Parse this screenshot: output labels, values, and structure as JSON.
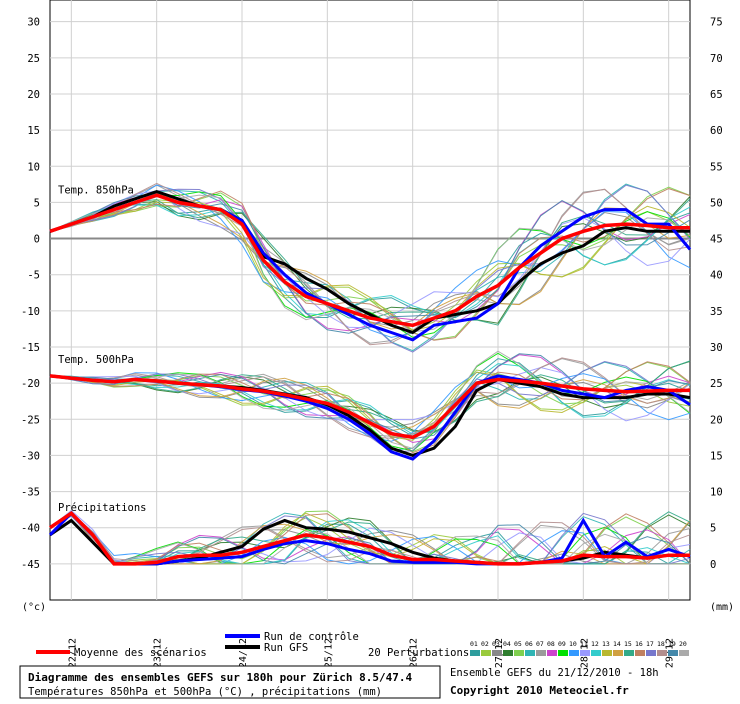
{
  "chart_data": {
    "type": "line",
    "title": "Diagramme des ensembles GEFS sur 180h pour Zürich 8.5/47.4",
    "subtitle": "Températures 850hPa et 500hPa (°C) , précipitations (mm)",
    "run_info": "Ensemble GEFS du 21/12/2010 - 18h",
    "copyright": "Copyright 2010 Meteociel.fr",
    "left_unit": "(°c)",
    "right_unit": "(mm)",
    "left_axis": {
      "ylim": [
        -50,
        33
      ],
      "ticks": [
        30,
        25,
        20,
        15,
        10,
        5,
        0,
        -5,
        -10,
        -15,
        -20,
        -25,
        -30,
        -35,
        -40,
        -45
      ]
    },
    "right_axis": {
      "ticks": [
        75,
        70,
        65,
        60,
        55,
        50,
        45,
        40,
        35,
        30,
        25,
        20,
        15,
        10,
        5,
        0
      ]
    },
    "x_axis": {
      "labels": [
        "22/12",
        "23/12",
        "24/12",
        "25/12",
        "26/12",
        "27/12",
        "28/12",
        "29/12"
      ],
      "hours": [
        6,
        30,
        54,
        78,
        102,
        126,
        150,
        174
      ]
    },
    "grid": true,
    "panels": [
      {
        "label": "Temp. 850hPa",
        "x_hours": [
          0,
          6,
          12,
          18,
          24,
          30,
          36,
          42,
          48,
          54,
          60,
          66,
          72,
          78,
          84,
          90,
          96,
          102,
          108,
          114,
          120,
          126,
          132,
          138,
          144,
          150,
          156,
          162,
          168,
          174,
          180
        ],
        "mean": [
          1,
          2,
          3,
          4,
          5,
          6,
          5,
          4.5,
          4,
          2,
          -3,
          -6,
          -8,
          -9,
          -10,
          -11,
          -11.5,
          -12,
          -11,
          -10,
          -8,
          -6.5,
          -4,
          -2,
          0,
          1,
          1.8,
          2,
          1.8,
          1.5,
          1.5
        ],
        "control": [
          1,
          2,
          3,
          4,
          5,
          6,
          5,
          4.5,
          4,
          2.5,
          -2,
          -5,
          -7.5,
          -9,
          -10.5,
          -12,
          -13,
          -14,
          -12,
          -11.5,
          -11,
          -9,
          -4,
          -1,
          1,
          3,
          4,
          4,
          2,
          2,
          -1.5
        ],
        "gfs": [
          1,
          2,
          3,
          4.5,
          5.5,
          6.5,
          5.5,
          4.5,
          4,
          2.5,
          -2.5,
          -3.5,
          -5.5,
          -7,
          -9,
          -10.5,
          -12,
          -13,
          -11,
          -10.5,
          -10,
          -9,
          -6,
          -3.5,
          -2,
          -1,
          1,
          1.5,
          1,
          1,
          1
        ]
      },
      {
        "label": "Temp. 500hPa",
        "x_hours": [
          0,
          6,
          12,
          18,
          24,
          30,
          36,
          42,
          48,
          54,
          60,
          66,
          72,
          78,
          84,
          90,
          96,
          102,
          108,
          114,
          120,
          126,
          132,
          138,
          144,
          150,
          156,
          162,
          168,
          174,
          180
        ],
        "mean": [
          -19,
          -19.3,
          -19.6,
          -19.8,
          -19.5,
          -19.7,
          -20,
          -20.2,
          -20.4,
          -20.8,
          -21.1,
          -21.6,
          -22.2,
          -22.8,
          -24,
          -25.5,
          -27,
          -27.5,
          -26,
          -23,
          -20,
          -19.5,
          -19.7,
          -20,
          -20.4,
          -20.8,
          -21,
          -21.2,
          -21.1,
          -21,
          -21
        ],
        "control": [
          -19,
          -19.3,
          -19.6,
          -19.8,
          -19.5,
          -19.7,
          -20,
          -20.2,
          -20.5,
          -20.9,
          -21.2,
          -21.8,
          -22.5,
          -23.5,
          -25,
          -27,
          -29.5,
          -30.5,
          -28,
          -24,
          -20,
          -19,
          -19.5,
          -20,
          -21,
          -21.5,
          -22,
          -21,
          -20.5,
          -21,
          -23
        ],
        "gfs": [
          -19,
          -19.3,
          -19.6,
          -19.8,
          -19.5,
          -19.7,
          -20,
          -20.2,
          -20.4,
          -20.6,
          -21,
          -21.5,
          -22,
          -23,
          -24.5,
          -26.5,
          -29,
          -30,
          -29,
          -26,
          -21,
          -19.5,
          -20,
          -20.5,
          -21.5,
          -22,
          -22,
          -22,
          -21.5,
          -21.5,
          -22
        ]
      },
      {
        "label": "Précipitations",
        "x_hours": [
          0,
          6,
          12,
          18,
          24,
          30,
          36,
          42,
          48,
          54,
          60,
          66,
          72,
          78,
          84,
          90,
          96,
          102,
          108,
          114,
          120,
          126,
          132,
          138,
          144,
          150,
          156,
          162,
          168,
          174,
          180
        ],
        "mean": [
          2.5,
          3.5,
          2,
          0,
          0,
          0.1,
          0.5,
          0.6,
          0.6,
          0.8,
          1.2,
          1.6,
          2,
          1.8,
          1.5,
          1.2,
          0.6,
          0.3,
          0.3,
          0.2,
          0.1,
          0,
          0,
          0.1,
          0.2,
          0.6,
          0.5,
          0.5,
          0.4,
          0.6,
          0.6
        ],
        "control": [
          2,
          3.5,
          2,
          0,
          0,
          0,
          0.2,
          0.3,
          0.4,
          0.5,
          1,
          1.4,
          1.6,
          1.4,
          1,
          0.7,
          0.2,
          0.1,
          0.1,
          0.1,
          0,
          0,
          0,
          0.1,
          0.4,
          3,
          0.5,
          1.5,
          0.5,
          1,
          0.5
        ],
        "gfs": [
          2,
          3,
          1.5,
          0,
          0,
          0,
          0.2,
          0.4,
          0.8,
          1.2,
          2.4,
          3,
          2.5,
          2.4,
          2.2,
          1.8,
          1.4,
          0.8,
          0.4,
          0.2,
          0.1,
          0,
          0,
          0.1,
          0.2,
          0.4,
          0.8,
          0.6,
          0.4,
          0.6,
          0.6
        ]
      }
    ],
    "legend": {
      "mean_label": "Moyenne des scénarios",
      "control_label": "Run de contrôle",
      "gfs_label": "Run GFS",
      "perturbations_label": "20 Perturbations",
      "member_codes": [
        "01",
        "02",
        "03",
        "04",
        "05",
        "06",
        "07",
        "08",
        "09",
        "10",
        "11",
        "12",
        "13",
        "14",
        "15",
        "16",
        "17",
        "18",
        "19",
        "20"
      ],
      "member_colors": [
        "#2e9d9d",
        "#9aca3c",
        "#888888",
        "#2e7d2e",
        "#7fd04f",
        "#2fb4b4",
        "#9b9b9b",
        "#cc44cc",
        "#00e000",
        "#3399ff",
        "#9999ff",
        "#33cccc",
        "#b8b830",
        "#d0a040",
        "#33aa88",
        "#c08060",
        "#7777cc",
        "#b38e8e",
        "#4488aa",
        "#aaaaaa"
      ]
    },
    "colors": {
      "mean": "#ff0000",
      "control": "#0000ff",
      "gfs": "#000000",
      "zero_line": "#888888"
    }
  }
}
